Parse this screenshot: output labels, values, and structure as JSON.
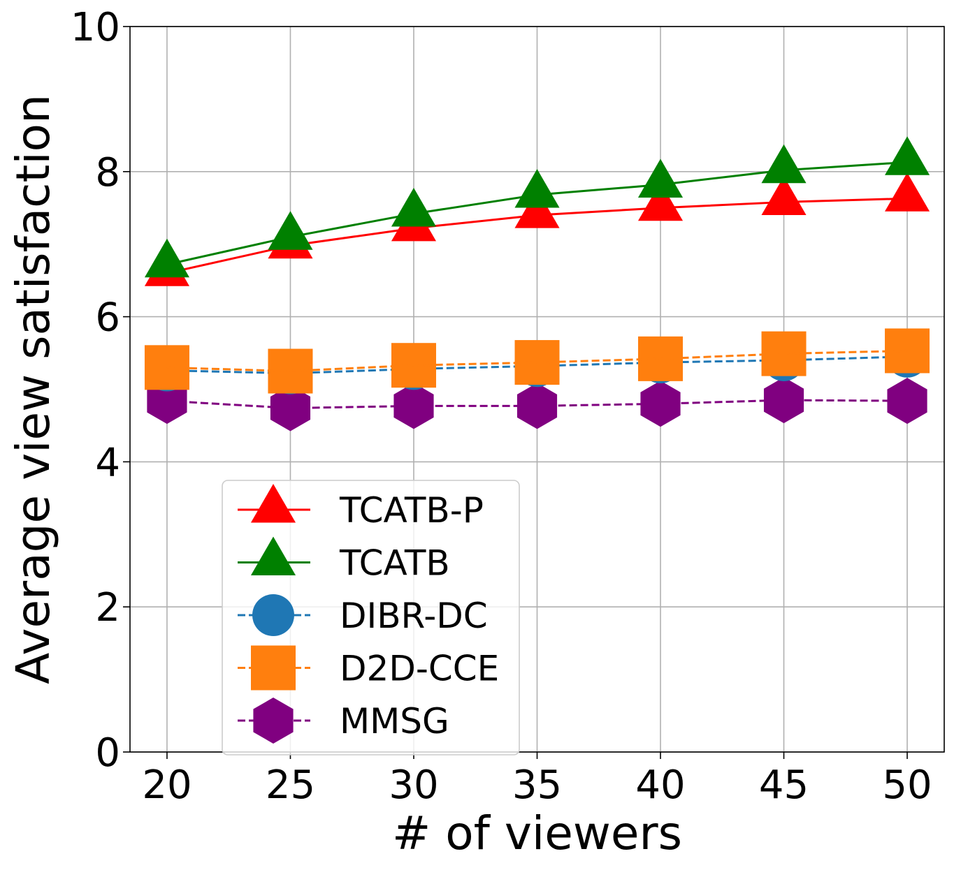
{
  "chart_data": {
    "type": "line",
    "title": "",
    "xlabel": "# of viewers",
    "ylabel": "Average view satisfaction",
    "x": [
      20,
      25,
      30,
      35,
      40,
      45,
      50
    ],
    "xticks": [
      "20",
      "25",
      "30",
      "35",
      "40",
      "45",
      "50"
    ],
    "yticks": [
      "0",
      "2",
      "4",
      "6",
      "8",
      "10"
    ],
    "xlim": [
      18.5,
      51.5
    ],
    "ylim": [
      0,
      10
    ],
    "grid": true,
    "legend_position": "lower-left",
    "series": [
      {
        "name": "TCATB-P",
        "color": "#ff0000",
        "marker": "triangle",
        "linestyle": "solid",
        "values": [
          6.6,
          6.98,
          7.22,
          7.4,
          7.5,
          7.58,
          7.63
        ]
      },
      {
        "name": "TCATB",
        "color": "#008000",
        "marker": "triangle",
        "linestyle": "solid",
        "values": [
          6.72,
          7.1,
          7.42,
          7.68,
          7.82,
          8.02,
          8.13
        ]
      },
      {
        "name": "DIBR-DC",
        "color": "#1f77b4",
        "marker": "circle",
        "linestyle": "dashed",
        "values": [
          5.26,
          5.22,
          5.28,
          5.32,
          5.37,
          5.4,
          5.45
        ]
      },
      {
        "name": "D2D-CCE",
        "color": "#ff7f0e",
        "marker": "square",
        "linestyle": "dashed",
        "values": [
          5.3,
          5.25,
          5.33,
          5.37,
          5.42,
          5.49,
          5.53
        ]
      },
      {
        "name": "MMSG",
        "color": "#800080",
        "marker": "hexagon",
        "linestyle": "dashed",
        "values": [
          4.84,
          4.74,
          4.77,
          4.77,
          4.8,
          4.85,
          4.84
        ]
      }
    ]
  }
}
